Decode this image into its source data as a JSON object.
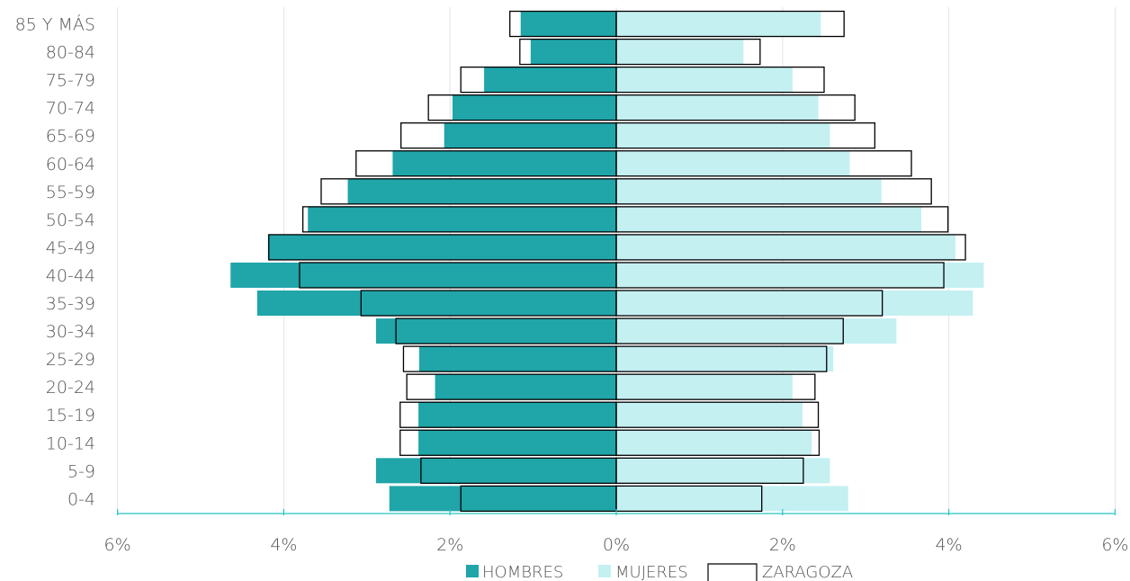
{
  "chart_data": {
    "type": "bar",
    "orientation": "horizontal",
    "subtype": "population-pyramid",
    "categories": [
      "0-4",
      "5-9",
      "10-14",
      "15-19",
      "20-24",
      "25-29",
      "30-34",
      "35-39",
      "40-44",
      "45-49",
      "50-54",
      "55-59",
      "60-64",
      "65-69",
      "70-74",
      "75-79",
      "80-84",
      "85 Y MÁS"
    ],
    "series": [
      {
        "name": "HOMBRES",
        "color": "#20A5A9",
        "values": [
          -2.73,
          -2.89,
          -2.38,
          -2.38,
          -2.18,
          -2.37,
          -2.89,
          -4.32,
          -4.64,
          -4.19,
          -3.71,
          -3.23,
          -2.69,
          -2.07,
          -1.97,
          -1.59,
          -1.03,
          -1.15
        ]
      },
      {
        "name": "MUJERES",
        "color": "#C4F0F2",
        "values": [
          2.79,
          2.57,
          2.35,
          2.24,
          2.12,
          2.61,
          3.37,
          4.29,
          4.42,
          4.08,
          3.67,
          3.19,
          2.81,
          2.57,
          2.43,
          2.12,
          1.53,
          2.46
        ]
      },
      {
        "name": "ZARAGOZA",
        "style": "outline",
        "color": "#000000",
        "values_hombres": [
          -1.87,
          -2.35,
          -2.6,
          -2.6,
          -2.52,
          -2.56,
          -2.65,
          -3.07,
          -3.81,
          -4.18,
          -3.77,
          -3.55,
          -3.13,
          -2.59,
          -2.26,
          -1.87,
          -1.16,
          -1.28
        ],
        "values_mujeres": [
          1.75,
          2.25,
          2.44,
          2.43,
          2.39,
          2.53,
          2.73,
          3.2,
          3.94,
          4.2,
          3.99,
          3.79,
          3.55,
          3.11,
          2.87,
          2.5,
          1.73,
          2.74
        ]
      }
    ],
    "x_ticks": [
      "6%",
      "4%",
      "2%",
      "0%",
      "2%",
      "4%",
      "6%"
    ],
    "xlim": [
      -6,
      6
    ],
    "grid": true,
    "legend_position": "bottom",
    "legend": [
      "HOMBRES",
      "MUJERES",
      "ZARAGOZA"
    ]
  }
}
